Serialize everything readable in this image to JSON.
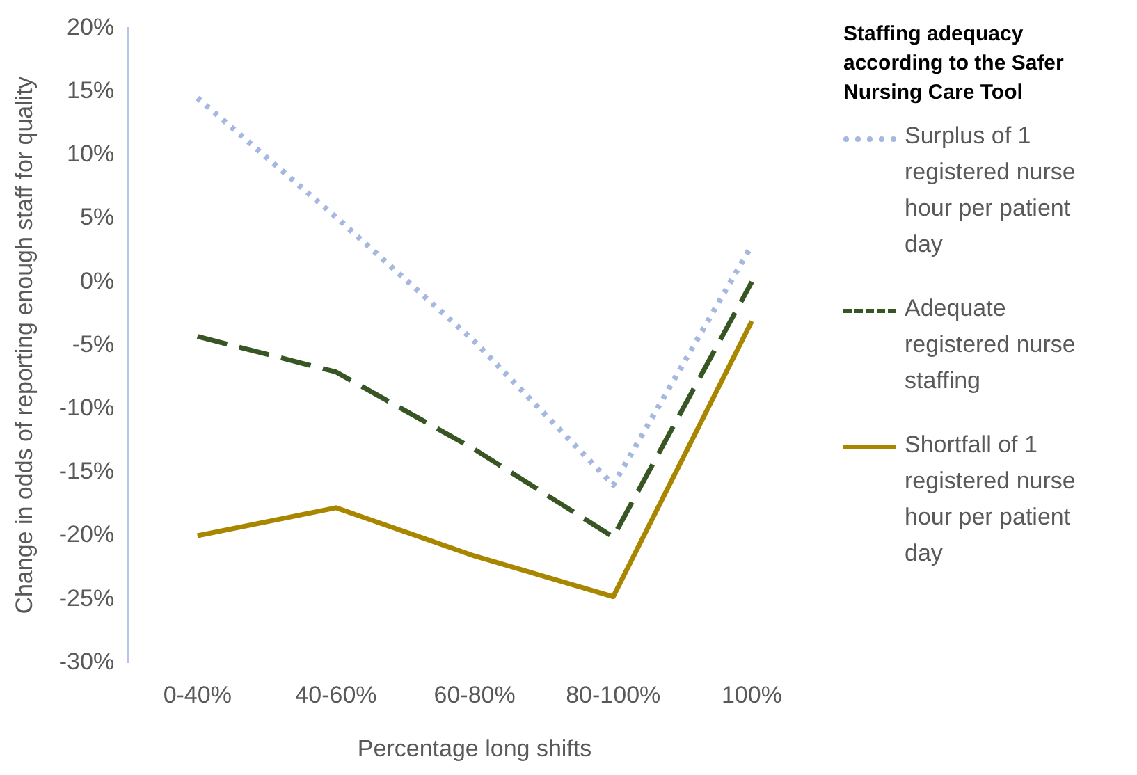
{
  "chart_data": {
    "type": "line",
    "xlabel": "Percentage long shifts",
    "ylabel": "Change in odds of reporting enough staff for quality",
    "legend_title": "Staffing adequacy according to the Safer Nursing Care Tool",
    "categories": [
      "0-40%",
      "40-60%",
      "60-80%",
      "80-100%",
      "100%"
    ],
    "series": [
      {
        "name": "Surplus of 1 registered nurse hour per patient day",
        "color": "#a5b8e0",
        "line_style": "dotted",
        "values": [
          14.5,
          5.1,
          -4.7,
          -16,
          2.9
        ]
      },
      {
        "name": "Adequate registered nurse staffing",
        "color": "#375623",
        "line_style": "dashed",
        "values": [
          -4.3,
          -7.1,
          -13.2,
          -20.1,
          0
        ]
      },
      {
        "name": "Shortfall of 1 registered nurse hour per patient day",
        "color": "#a98600",
        "line_style": "solid",
        "values": [
          -20,
          -17.8,
          -21.6,
          -24.8,
          -3.1
        ]
      }
    ],
    "ylim": [
      -30,
      20
    ],
    "yticks": [
      {
        "value": -30,
        "label": "-30%"
      },
      {
        "value": -25,
        "label": "-25%"
      },
      {
        "value": -20,
        "label": "-20%"
      },
      {
        "value": -15,
        "label": "-15%"
      },
      {
        "value": -10,
        "label": "-10%"
      },
      {
        "value": -5,
        "label": "-5%"
      },
      {
        "value": 0,
        "label": "0%"
      },
      {
        "value": 5,
        "label": "5%"
      },
      {
        "value": 10,
        "label": "10%"
      },
      {
        "value": 15,
        "label": "15%"
      },
      {
        "value": 20,
        "label": "20%"
      }
    ],
    "grid": false,
    "legend": "right",
    "marker": "none"
  }
}
